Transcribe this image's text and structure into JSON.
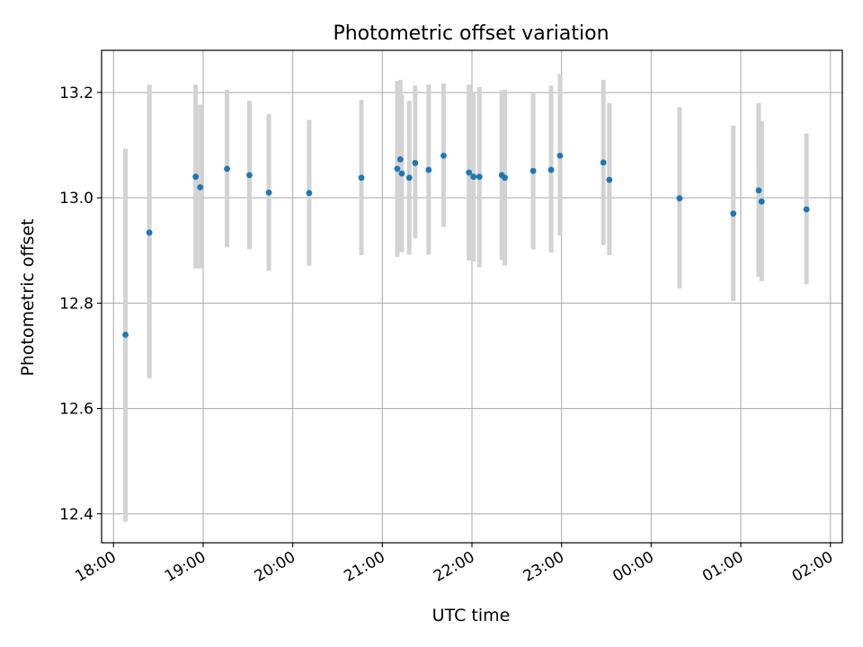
{
  "chart_data": {
    "type": "scatter",
    "title": "Photometric offset variation",
    "xlabel": "UTC time",
    "ylabel": "Photometric offset",
    "x_axis": "datetime",
    "xlim": [
      "17:52",
      "26:08"
    ],
    "ylim": [
      12.345,
      13.28
    ],
    "x_ticks": [
      "18:00",
      "19:00",
      "20:00",
      "21:00",
      "22:00",
      "23:00",
      "00:00",
      "01:00",
      "02:00"
    ],
    "x_tick_values": [
      "18:00",
      "19:00",
      "20:00",
      "21:00",
      "22:00",
      "23:00",
      "24:00",
      "25:00",
      "26:00"
    ],
    "y_ticks": [
      12.4,
      12.6,
      12.8,
      13.0,
      13.2
    ],
    "y_tick_labels": [
      "12.4",
      "12.6",
      "12.8",
      "13.0",
      "13.2"
    ],
    "grid": true,
    "colors": {
      "marker": "#1f77b4",
      "errorbar": "#d3d3d3",
      "grid": "#b0b0b0"
    },
    "points": [
      {
        "t": "18:08",
        "y": 12.74,
        "ylo": 12.385,
        "yhi": 13.093
      },
      {
        "t": "18:24",
        "y": 12.934,
        "ylo": 12.657,
        "yhi": 13.215
      },
      {
        "t": "18:55",
        "y": 13.04,
        "ylo": 12.866,
        "yhi": 13.215
      },
      {
        "t": "18:58",
        "y": 13.02,
        "ylo": 12.866,
        "yhi": 13.177
      },
      {
        "t": "19:16",
        "y": 13.055,
        "ylo": 12.906,
        "yhi": 13.205
      },
      {
        "t": "19:31",
        "y": 13.043,
        "ylo": 12.902,
        "yhi": 13.184
      },
      {
        "t": "19:44",
        "y": 13.01,
        "ylo": 12.861,
        "yhi": 13.159
      },
      {
        "t": "20:11",
        "y": 13.009,
        "ylo": 12.871,
        "yhi": 13.148
      },
      {
        "t": "20:46",
        "y": 13.038,
        "ylo": 12.891,
        "yhi": 13.186
      },
      {
        "t": "21:10",
        "y": 13.055,
        "ylo": 12.888,
        "yhi": 13.222
      },
      {
        "t": "21:12",
        "y": 13.073,
        "ylo": 12.897,
        "yhi": 13.224
      },
      {
        "t": "21:13",
        "y": 13.046,
        "ylo": 12.897,
        "yhi": 13.196
      },
      {
        "t": "21:18",
        "y": 13.038,
        "ylo": 12.892,
        "yhi": 13.184
      },
      {
        "t": "21:22",
        "y": 13.066,
        "ylo": 12.923,
        "yhi": 13.213
      },
      {
        "t": "21:31",
        "y": 13.053,
        "ylo": 12.892,
        "yhi": 13.215
      },
      {
        "t": "21:41",
        "y": 13.08,
        "ylo": 12.945,
        "yhi": 13.217
      },
      {
        "t": "21:58",
        "y": 13.048,
        "ylo": 12.881,
        "yhi": 13.215
      },
      {
        "t": "22:01",
        "y": 13.04,
        "ylo": 12.879,
        "yhi": 13.202
      },
      {
        "t": "22:05",
        "y": 13.04,
        "ylo": 12.868,
        "yhi": 13.21
      },
      {
        "t": "22:20",
        "y": 13.043,
        "ylo": 12.882,
        "yhi": 13.204
      },
      {
        "t": "22:22",
        "y": 13.038,
        "ylo": 12.871,
        "yhi": 13.205
      },
      {
        "t": "22:41",
        "y": 13.051,
        "ylo": 12.902,
        "yhi": 13.2
      },
      {
        "t": "22:53",
        "y": 13.053,
        "ylo": 12.896,
        "yhi": 13.213
      },
      {
        "t": "22:59",
        "y": 13.08,
        "ylo": 12.928,
        "yhi": 13.235
      },
      {
        "t": "23:28",
        "y": 13.067,
        "ylo": 12.91,
        "yhi": 13.224
      },
      {
        "t": "23:32",
        "y": 13.034,
        "ylo": 12.891,
        "yhi": 13.18
      },
      {
        "t": "24:19",
        "y": 12.999,
        "ylo": 12.828,
        "yhi": 13.172
      },
      {
        "t": "24:55",
        "y": 12.97,
        "ylo": 12.804,
        "yhi": 13.137
      },
      {
        "t": "25:12",
        "y": 13.014,
        "ylo": 12.85,
        "yhi": 13.18
      },
      {
        "t": "25:14",
        "y": 12.993,
        "ylo": 12.842,
        "yhi": 13.146
      },
      {
        "t": "25:44",
        "y": 12.978,
        "ylo": 12.836,
        "yhi": 13.122
      }
    ]
  }
}
